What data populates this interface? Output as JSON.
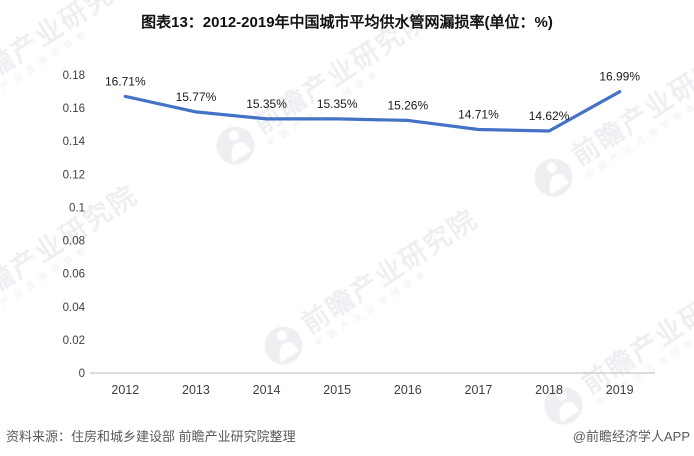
{
  "chart_data": {
    "type": "line",
    "title": "图表13：2012-2019年中国城市平均供水管网漏损率(单位：%)",
    "unit": "%",
    "categories": [
      "2012",
      "2013",
      "2014",
      "2015",
      "2016",
      "2017",
      "2018",
      "2019"
    ],
    "values": [
      16.71,
      15.77,
      15.35,
      15.35,
      15.26,
      14.71,
      14.62,
      16.99
    ],
    "data_labels": [
      "16.71%",
      "15.77%",
      "15.35%",
      "15.35%",
      "15.26%",
      "14.71%",
      "14.62%",
      "16.99%"
    ],
    "yticks": [
      "0",
      "0.02",
      "0.04",
      "0.06",
      "0.08",
      "0.1",
      "0.12",
      "0.14",
      "0.16",
      "0.18"
    ],
    "ylim": [
      0,
      0.18
    ],
    "xlabel": "",
    "ylabel": "",
    "grid": false,
    "legend": "none",
    "line_color": "#4472C4",
    "axis_color": "#c9c9c9",
    "tick_color": "#404040",
    "label_color": "#1a1a1a"
  },
  "watermark": {
    "brand": "前瞻产业研究院",
    "tagline": "中国产业咨询领导者"
  },
  "footer": {
    "source": "资料来源：住房和城乡建设部 前瞻产业研究院整理",
    "credit": "@前瞻经济学人APP"
  }
}
